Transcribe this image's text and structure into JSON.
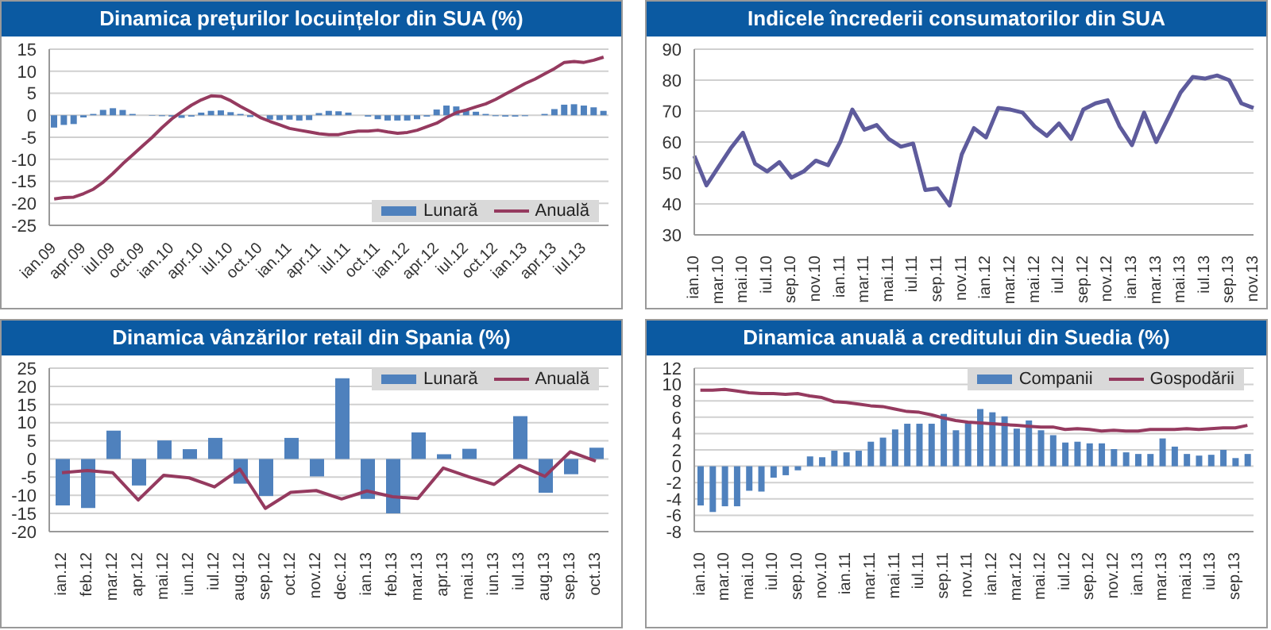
{
  "chart_data": [
    {
      "type": "bar",
      "title": "Dinamica prețurilor locuințelor din SUA (%)",
      "categories": [
        "ian.09",
        null,
        null,
        "apr.09",
        null,
        null,
        "iul.09",
        null,
        null,
        "oct.09",
        null,
        null,
        "ian.10",
        null,
        null,
        "apr.10",
        null,
        null,
        "iul.10",
        null,
        null,
        "oct.10",
        null,
        null,
        "ian.11",
        null,
        null,
        "apr.11",
        null,
        null,
        "iul.11",
        null,
        null,
        "oct.11",
        null,
        null,
        "ian.12",
        null,
        null,
        "apr.12",
        null,
        null,
        "iul.12",
        null,
        null,
        "oct.12",
        null,
        null,
        "ian.13",
        null,
        null,
        "apr.13",
        null,
        null,
        "iul.13",
        null,
        null
      ],
      "series": [
        {
          "name": "Lunară",
          "color": "#4f81bd",
          "values": [
            -2.8,
            -2.2,
            -2.0,
            -0.5,
            0.3,
            1.2,
            1.6,
            1.2,
            0.3,
            null,
            -0.1,
            -0.2,
            -0.3,
            -0.6,
            -0.3,
            0.6,
            1.0,
            1.1,
            0.7,
            0.3,
            -0.4,
            null,
            -1.0,
            -1.1,
            -1.0,
            -1.2,
            -1.1,
            0.5,
            1.0,
            0.9,
            0.6,
            null,
            -0.3,
            -0.9,
            -1.2,
            -1.2,
            -1.2,
            -0.9,
            -0.3,
            1.3,
            2.2,
            2.0,
            1.2,
            0.8,
            0.3,
            -0.2,
            -0.3,
            -0.3,
            -0.2,
            null,
            0.3,
            1.4,
            2.4,
            2.5,
            2.2,
            1.8,
            1.0
          ]
        },
        {
          "name": "Anuală",
          "type": "line",
          "color": "#953a5f",
          "values": [
            -19,
            -18.7,
            -18.6,
            -17.8,
            -16.8,
            -15.2,
            -13.2,
            -11,
            -9,
            -7,
            -5,
            -2.8,
            -0.8,
            0.8,
            2.3,
            3.5,
            4.4,
            4.3,
            3.3,
            2,
            0.8,
            -0.5,
            -1.4,
            -2.2,
            -3,
            -3.4,
            -3.8,
            -4.2,
            -4.4,
            -4.4,
            -3.9,
            -3.6,
            -3.6,
            -3.4,
            -3.8,
            -4.1,
            -3.9,
            -3.4,
            -2.6,
            -1.8,
            -0.5,
            0.6,
            1.2,
            1.9,
            2.6,
            3.6,
            4.8,
            6,
            7.2,
            8.2,
            9.4,
            10.6,
            12,
            12.2,
            12,
            12.5,
            13.2
          ]
        }
      ],
      "ylim": [
        -25,
        15
      ],
      "yticks": [
        -25,
        -20,
        -15,
        -10,
        -5,
        0,
        5,
        10,
        15
      ],
      "grid": "y",
      "legend": "bottom right"
    },
    {
      "type": "line",
      "title": "Indicele încrederii consumatorilor din SUA",
      "categories": [
        "ian.10",
        null,
        "mar.10",
        null,
        "mai.10",
        null,
        "iul.10",
        null,
        "sep.10",
        null,
        "nov.10",
        null,
        "ian.11",
        null,
        "mar.11",
        null,
        "mai.11",
        null,
        "iul.11",
        null,
        "sep.11",
        null,
        "nov.11",
        null,
        "ian.12",
        null,
        "mar.12",
        null,
        "mai.12",
        null,
        "iul.12",
        null,
        "sep.12",
        null,
        "nov.12",
        null,
        "ian.13",
        null,
        "mar.13",
        null,
        "mai.13",
        null,
        "iul.13",
        null,
        "sep.13",
        null,
        "nov.13"
      ],
      "series": [
        {
          "color": "#5e5b9c",
          "values": [
            55.5,
            46,
            52,
            58,
            63,
            53,
            50.5,
            53.5,
            48.5,
            50.5,
            54,
            52.5,
            60,
            70.5,
            64,
            65.5,
            61,
            58.5,
            59.5,
            44.5,
            45,
            39.5,
            56,
            64.5,
            61.5,
            71,
            70.5,
            69.5,
            65,
            62,
            66,
            61,
            70.5,
            72.5,
            73.5,
            65,
            59,
            69.5,
            60,
            68,
            76,
            81,
            80.5,
            81.5,
            80,
            72.5,
            71
          ]
        }
      ],
      "ylim": [
        30,
        90
      ],
      "yticks": [
        30,
        40,
        50,
        60,
        70,
        80,
        90
      ],
      "grid": "y"
    },
    {
      "type": "bar",
      "title": "Dinamica vânzărilor retail din Spania (%)",
      "categories": [
        "ian.12",
        "feb.12",
        "mar.12",
        "apr.12",
        "mai.12",
        "iun.12",
        "iul.12",
        "aug.12",
        "sep.12",
        "oct.12",
        "nov.12",
        "dec.12",
        "ian.13",
        "feb.13",
        "mar.13",
        "apr.13",
        "mai.13",
        "iun.13",
        "iul.13",
        "aug.13",
        "sep.13",
        "oct.13"
      ],
      "series": [
        {
          "name": "Lunară",
          "color": "#4f81bd",
          "values": [
            -12.8,
            -13.5,
            7.8,
            -7.3,
            5.1,
            2.7,
            5.8,
            -6.8,
            -10.2,
            5.8,
            -4.8,
            22.2,
            -11,
            -15,
            7.3,
            1.3,
            2.8,
            0,
            11.8,
            -9.3,
            -4.2,
            3.1
          ]
        },
        {
          "name": "Anuală",
          "type": "line",
          "color": "#953a5f",
          "values": [
            -3.8,
            -3.2,
            -3.8,
            -11.3,
            -4.5,
            -5.2,
            -7.7,
            -2.8,
            -13.6,
            -9.2,
            -8.7,
            -11,
            -8.8,
            -10.4,
            -10.9,
            -2.5,
            -4.9,
            -7,
            -1.8,
            -4.8,
            2,
            -0.6
          ]
        }
      ],
      "ylim": [
        -20,
        25
      ],
      "yticks": [
        -20,
        -15,
        -10,
        -5,
        0,
        5,
        10,
        15,
        20,
        25
      ],
      "grid": "y",
      "legend": "top right"
    },
    {
      "type": "bar",
      "title": "Dinamica anuală a creditului din Suedia (%)",
      "categories": [
        "ian.10",
        null,
        "mar.10",
        null,
        "mai.10",
        null,
        "iul.10",
        null,
        "sep.10",
        null,
        "nov.10",
        null,
        "ian.11",
        null,
        "mar.11",
        null,
        "mai.11",
        null,
        "iul.11",
        null,
        "sep.11",
        null,
        "nov.11",
        null,
        "ian.12",
        null,
        "mar.12",
        null,
        "mai.12",
        null,
        "iul.12",
        null,
        "sep.12",
        null,
        "nov.12",
        null,
        "ian.13",
        null,
        "mar.13",
        null,
        "mai.13",
        null,
        "iul.13",
        null,
        "sep.13",
        null
      ],
      "series": [
        {
          "name": "Companii",
          "color": "#4f81bd",
          "values": [
            -4.8,
            -5.6,
            -4.9,
            -4.9,
            -3,
            -3.1,
            -1.4,
            -1.1,
            -0.5,
            1.2,
            1.1,
            1.9,
            1.7,
            1.9,
            3,
            3.5,
            4.5,
            5.2,
            5.2,
            5.2,
            6.4,
            4.4,
            5.3,
            7,
            6.6,
            6.1,
            4.6,
            5.6,
            4.4,
            3.8,
            2.9,
            3,
            2.8,
            2.8,
            2.1,
            1.7,
            1.5,
            1.5,
            3.4,
            2.4,
            1.5,
            1.3,
            1.4,
            2,
            1,
            1.5
          ]
        },
        {
          "name": "Gospodării",
          "type": "line",
          "color": "#953a5f",
          "values": [
            9.3,
            9.3,
            9.4,
            9.2,
            9,
            8.9,
            8.9,
            8.8,
            8.9,
            8.6,
            8.4,
            7.9,
            7.8,
            7.6,
            7.4,
            7.3,
            7,
            6.7,
            6.6,
            6.3,
            5.9,
            5.6,
            5.4,
            5.3,
            5.2,
            5.1,
            5,
            4.9,
            4.8,
            4.8,
            4.5,
            4.6,
            4.5,
            4.3,
            4.4,
            4.3,
            4.3,
            4.5,
            4.5,
            4.5,
            4.6,
            4.5,
            4.6,
            4.7,
            4.7,
            5
          ]
        }
      ],
      "ylim": [
        -8,
        12
      ],
      "yticks": [
        -8,
        -6,
        -4,
        -2,
        0,
        2,
        4,
        6,
        8,
        10,
        12
      ],
      "grid": "y",
      "legend": "top right"
    }
  ]
}
